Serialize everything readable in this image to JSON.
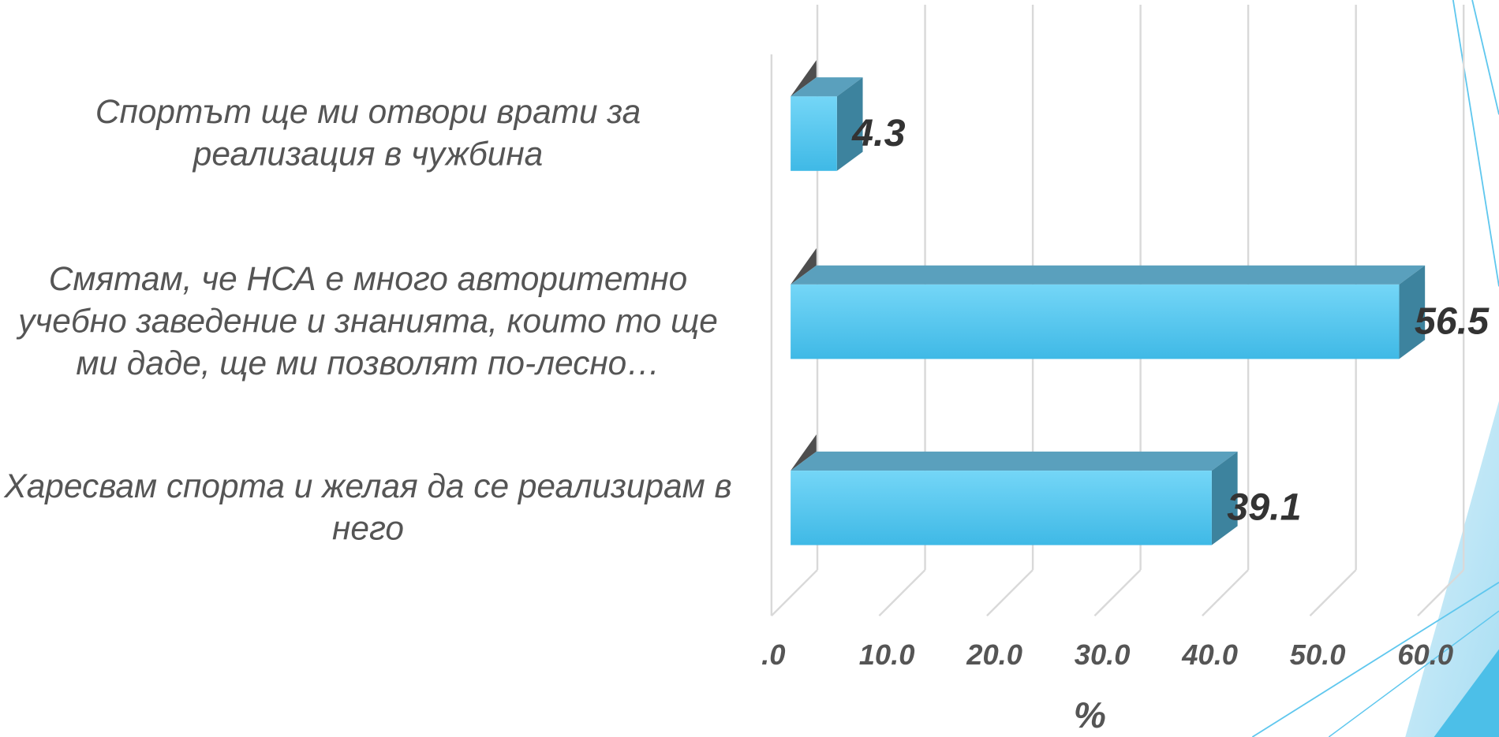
{
  "chart_data": {
    "type": "bar",
    "orientation": "horizontal",
    "categories": [
      "Спортът ще ми отвори врати за реализация в чужбина",
      "Смятам, че НСА е много авторитетно учебно заведение и знанията, които то ще ми даде, ще ми позволят по-лесно…",
      "Харесвам спорта и желая да се реализирам в него"
    ],
    "values": [
      4.3,
      56.5,
      39.1
    ],
    "color": "#4cc4ef",
    "xlim": [
      0,
      60
    ],
    "xticks": [
      {
        "value": 0,
        "label": ".0"
      },
      {
        "value": 10,
        "label": "10.0"
      },
      {
        "value": 20,
        "label": "20.0"
      },
      {
        "value": 30,
        "label": "30.0"
      },
      {
        "value": 40,
        "label": "40.0"
      },
      {
        "value": 50,
        "label": "50.0"
      },
      {
        "value": 60,
        "label": "60.0"
      }
    ],
    "xlabel": "%",
    "grid": true
  }
}
